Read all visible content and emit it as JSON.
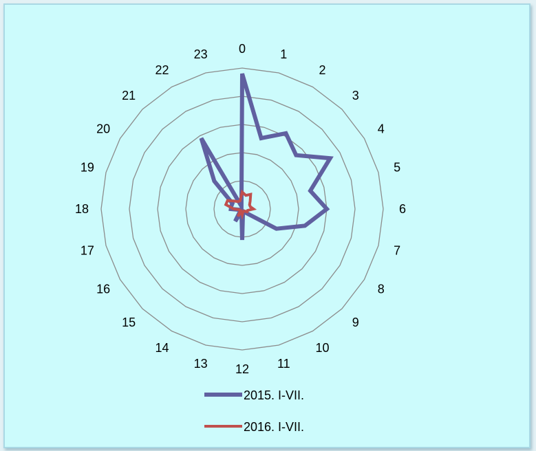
{
  "chart_data": {
    "type": "radar",
    "title": "",
    "categories": [
      "0",
      "1",
      "2",
      "3",
      "4",
      "5",
      "6",
      "7",
      "8",
      "9",
      "10",
      "11",
      "12",
      "13",
      "14",
      "15",
      "16",
      "17",
      "18",
      "19",
      "20",
      "21",
      "22",
      "23"
    ],
    "rmax": 5,
    "rings": 5,
    "series": [
      {
        "name": "2015. I-VII.",
        "color": "#6060a0",
        "values": [
          4.8,
          2.6,
          3.1,
          2.7,
          3.6,
          2.5,
          3.0,
          2.3,
          1.4,
          0.2,
          0.1,
          0.1,
          1.1,
          0.1,
          0.5,
          0.1,
          0.1,
          0.1,
          0.4,
          0.4,
          0.4,
          1.4,
          2.9,
          0.1
        ]
      },
      {
        "name": "2016. I-VII.",
        "color": "#c0504d",
        "values": [
          0.6,
          0.5,
          0.6,
          0.4,
          0.3,
          0.3,
          0.4,
          0.2,
          0.2,
          0.1,
          0.1,
          0.1,
          0.2,
          0.1,
          0.3,
          0.1,
          0.1,
          0.1,
          0.3,
          0.6,
          0.6,
          0.4,
          0.3,
          0.3
        ]
      }
    ]
  }
}
